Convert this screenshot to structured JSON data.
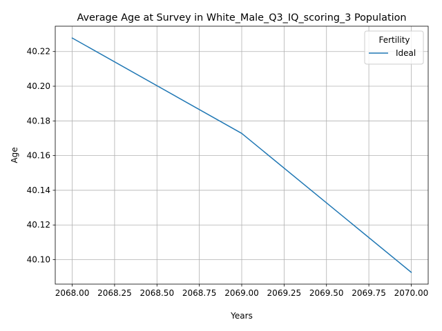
{
  "chart_data": {
    "type": "line",
    "title": "Average Age at Survey in White_Male_Q3_IQ_scoring_3 Population",
    "xlabel": "Years",
    "ylabel": "Age",
    "grid": true,
    "legend": {
      "title": "Fertility",
      "placement": "top-right"
    },
    "x_ticks": [
      "2068.00",
      "2068.25",
      "2068.50",
      "2068.75",
      "2069.00",
      "2069.25",
      "2069.50",
      "2069.75",
      "2070.00"
    ],
    "y_ticks": [
      "40.10",
      "40.12",
      "40.14",
      "40.16",
      "40.18",
      "40.20",
      "40.22"
    ],
    "xlim": [
      2067.9,
      2070.1
    ],
    "ylim": [
      40.0859,
      40.2346
    ],
    "series": [
      {
        "name": "Ideal",
        "color": "#1f77b4",
        "x": [
          2068,
          2069,
          2070
        ],
        "y": [
          40.2278,
          40.1728,
          40.0927
        ]
      }
    ]
  }
}
